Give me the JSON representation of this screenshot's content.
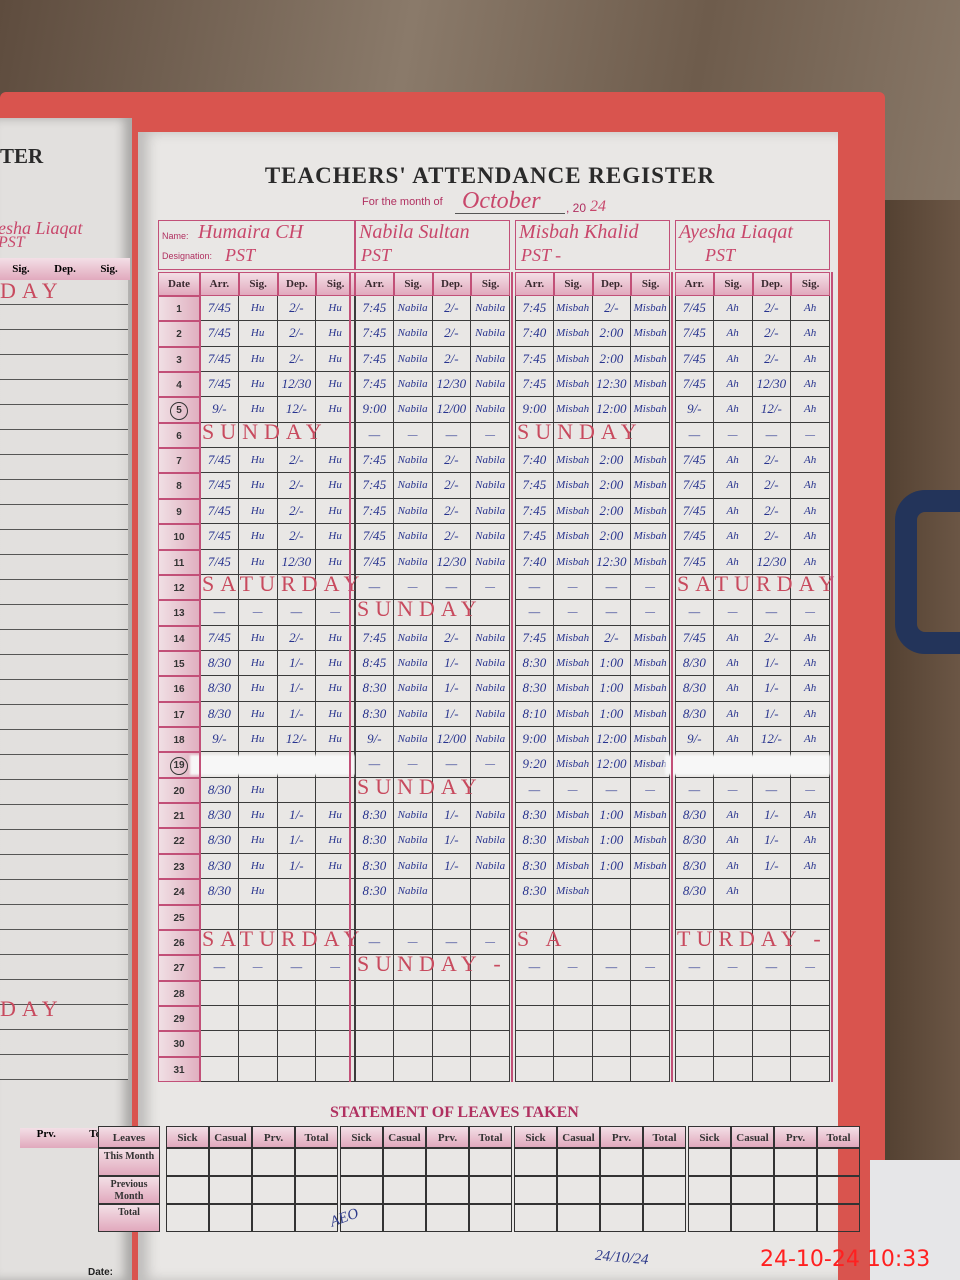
{
  "register": {
    "title": "TEACHERS' ATTENDANCE REGISTER",
    "month_label": "For the month of",
    "month": "October",
    "year_prefix": ", 20",
    "year_suffix": "24",
    "name_label": "Name:",
    "designation_label": "Designation:",
    "date_header": "Date",
    "column_headers": [
      "Arr.",
      "Sig.",
      "Dep.",
      "Sig."
    ],
    "teachers": [
      {
        "name": "Humaira CH",
        "designation": "PST",
        "sig": "Hu"
      },
      {
        "name": "Nabila Sultan",
        "designation": "PST",
        "sig": "Nabila"
      },
      {
        "name": "Misbah Khalid",
        "designation": "PST -",
        "sig": "Misbah"
      },
      {
        "name": "Ayesha Liaqat",
        "designation": "PST",
        "sig": "Ah"
      }
    ],
    "days": [
      {
        "date": "1",
        "entries": [
          [
            "7/45",
            "Hu",
            "2/-",
            "Hu"
          ],
          [
            "7:45",
            "Nabila",
            "2/-",
            "Nabila"
          ],
          [
            "7:45",
            "Misbah",
            "2/-",
            "Misbah"
          ],
          [
            "7/45",
            "Ah",
            "2/-",
            "Ah"
          ]
        ]
      },
      {
        "date": "2",
        "entries": [
          [
            "7/45",
            "Hu",
            "2/-",
            "Hu"
          ],
          [
            "7:45",
            "Nabila",
            "2/-",
            "Nabila"
          ],
          [
            "7:40",
            "Misbah",
            "2:00",
            "Misbah"
          ],
          [
            "7/45",
            "Ah",
            "2/-",
            "Ah"
          ]
        ]
      },
      {
        "date": "3",
        "entries": [
          [
            "7/45",
            "Hu",
            "2/-",
            "Hu"
          ],
          [
            "7:45",
            "Nabila",
            "2/-",
            "Nabila"
          ],
          [
            "7:45",
            "Misbah",
            "2:00",
            "Misbah"
          ],
          [
            "7/45",
            "Ah",
            "2/-",
            "Ah"
          ]
        ]
      },
      {
        "date": "4",
        "entries": [
          [
            "7/45",
            "Hu",
            "12/30",
            "Hu"
          ],
          [
            "7:45",
            "Nabila",
            "12/30",
            "Nabila"
          ],
          [
            "7:45",
            "Misbah",
            "12:30",
            "Misbah"
          ],
          [
            "7/45",
            "Ah",
            "12/30",
            "Ah"
          ]
        ]
      },
      {
        "date": "5",
        "circled": true,
        "entries": [
          [
            "9/-",
            "Hu",
            "12/-",
            "Hu"
          ],
          [
            "9:00",
            "Nabila",
            "12/00",
            "Nabila"
          ],
          [
            "9:00",
            "Misbah",
            "12:00",
            "Misbah"
          ],
          [
            "9/-",
            "Ah",
            "12/-",
            "Ah"
          ]
        ]
      },
      {
        "date": "6",
        "entries": [
          {
            "note": "SUNDAY"
          },
          [
            "-",
            "-",
            "-",
            "-"
          ],
          {
            "note": "SUNDAY"
          },
          [
            "-",
            "-",
            "-",
            "-"
          ]
        ]
      },
      {
        "date": "7",
        "entries": [
          [
            "7/45",
            "Hu",
            "2/-",
            "Hu"
          ],
          [
            "7:45",
            "Nabila",
            "2/-",
            "Nabila"
          ],
          [
            "7:40",
            "Misbah",
            "2:00",
            "Misbah"
          ],
          [
            "7/45",
            "Ah",
            "2/-",
            "Ah"
          ]
        ]
      },
      {
        "date": "8",
        "entries": [
          [
            "7/45",
            "Hu",
            "2/-",
            "Hu"
          ],
          [
            "7:45",
            "Nabila",
            "2/-",
            "Nabila"
          ],
          [
            "7:45",
            "Misbah",
            "2:00",
            "Misbah"
          ],
          [
            "7/45",
            "Ah",
            "2/-",
            "Ah"
          ]
        ]
      },
      {
        "date": "9",
        "entries": [
          [
            "7/45",
            "Hu",
            "2/-",
            "Hu"
          ],
          [
            "7:45",
            "Nabila",
            "2/-",
            "Nabila"
          ],
          [
            "7:45",
            "Misbah",
            "2:00",
            "Misbah"
          ],
          [
            "7/45",
            "Ah",
            "2/-",
            "Ah"
          ]
        ]
      },
      {
        "date": "10",
        "entries": [
          [
            "7/45",
            "Hu",
            "2/-",
            "Hu"
          ],
          [
            "7/45",
            "Nabila",
            "2/-",
            "Nabila"
          ],
          [
            "7:45",
            "Misbah",
            "2:00",
            "Misbah"
          ],
          [
            "7/45",
            "Ah",
            "2/-",
            "Ah"
          ]
        ]
      },
      {
        "date": "11",
        "entries": [
          [
            "7/45",
            "Hu",
            "12/30",
            "Hu"
          ],
          [
            "7/45",
            "Nabila",
            "12/30",
            "Nabila"
          ],
          [
            "7:40",
            "Misbah",
            "12:30",
            "Misbah"
          ],
          [
            "7/45",
            "Ah",
            "12/30",
            "Ah"
          ]
        ]
      },
      {
        "date": "12",
        "entries": [
          {
            "note": "SATURDAY"
          },
          [
            "-",
            "-",
            "-",
            "-"
          ],
          [
            "-",
            "-",
            "-",
            "-"
          ],
          {
            "note": "SATURDAY"
          }
        ]
      },
      {
        "date": "13",
        "entries": [
          [
            "-",
            "-",
            "-",
            "-"
          ],
          {
            "note": "SUNDAY"
          },
          [
            "-",
            "-",
            "-",
            "-"
          ],
          [
            "-",
            "-",
            "-",
            "-"
          ]
        ]
      },
      {
        "date": "14",
        "entries": [
          [
            "7/45",
            "Hu",
            "2/-",
            "Hu"
          ],
          [
            "7:45",
            "Nabila",
            "2/-",
            "Nabila"
          ],
          [
            "7:45",
            "Misbah",
            "2/-",
            "Misbah"
          ],
          [
            "7/45",
            "Ah",
            "2/-",
            "Ah"
          ]
        ]
      },
      {
        "date": "15",
        "entries": [
          [
            "8/30",
            "Hu",
            "1/-",
            "Hu"
          ],
          [
            "8:45",
            "Nabila",
            "1/-",
            "Nabila"
          ],
          [
            "8:30",
            "Misbah",
            "1:00",
            "Misbah"
          ],
          [
            "8/30",
            "Ah",
            "1/-",
            "Ah"
          ]
        ]
      },
      {
        "date": "16",
        "entries": [
          [
            "8/30",
            "Hu",
            "1/-",
            "Hu"
          ],
          [
            "8:30",
            "Nabila",
            "1/-",
            "Nabila"
          ],
          [
            "8:30",
            "Misbah",
            "1:00",
            "Misbah"
          ],
          [
            "8/30",
            "Ah",
            "1/-",
            "Ah"
          ]
        ]
      },
      {
        "date": "17",
        "entries": [
          [
            "8/30",
            "Hu",
            "1/-",
            "Hu"
          ],
          [
            "8:30",
            "Nabila",
            "1/-",
            "Nabila"
          ],
          [
            "8:10",
            "Misbah",
            "1:00",
            "Misbah"
          ],
          [
            "8/30",
            "Ah",
            "1/-",
            "Ah"
          ]
        ]
      },
      {
        "date": "18",
        "entries": [
          [
            "9/-",
            "Hu",
            "12/-",
            "Hu"
          ],
          [
            "9/-",
            "Nabila",
            "12/00",
            "Nabila"
          ],
          [
            "9:00",
            "Misbah",
            "12:00",
            "Misbah"
          ],
          [
            "9/-",
            "Ah",
            "12/-",
            "Ah"
          ]
        ]
      },
      {
        "date": "19",
        "circled": true,
        "entries": [
          {
            "whiteout": true
          },
          [
            "-",
            "-",
            "-",
            "-"
          ],
          [
            "9:20",
            "Misbah",
            "12:00",
            "Misbah"
          ],
          {
            "whiteout": true
          }
        ]
      },
      {
        "date": "20",
        "entries": [
          [
            "8/30",
            "Hu",
            "",
            ""
          ],
          {
            "note": "SUNDAY"
          },
          [
            "-",
            "-",
            "-",
            "-"
          ],
          [
            "-",
            "-",
            "-",
            "-"
          ]
        ]
      },
      {
        "date": "21",
        "entries": [
          [
            "8/30",
            "Hu",
            "1/-",
            "Hu"
          ],
          [
            "8:30",
            "Nabila",
            "1/-",
            "Nabila"
          ],
          [
            "8:30",
            "Misbah",
            "1:00",
            "Misbah"
          ],
          [
            "8/30",
            "Ah",
            "1/-",
            "Ah"
          ]
        ]
      },
      {
        "date": "22",
        "entries": [
          [
            "8/30",
            "Hu",
            "1/-",
            "Hu"
          ],
          [
            "8:30",
            "Nabila",
            "1/-",
            "Nabila"
          ],
          [
            "8:30",
            "Misbah",
            "1:00",
            "Misbah"
          ],
          [
            "8/30",
            "Ah",
            "1/-",
            "Ah"
          ]
        ]
      },
      {
        "date": "23",
        "entries": [
          [
            "8/30",
            "Hu",
            "1/-",
            "Hu"
          ],
          [
            "8:30",
            "Nabila",
            "1/-",
            "Nabila"
          ],
          [
            "8:30",
            "Misbah",
            "1:00",
            "Misbah"
          ],
          [
            "8/30",
            "Ah",
            "1/-",
            "Ah"
          ]
        ]
      },
      {
        "date": "24",
        "entries": [
          [
            "8/30",
            "Hu",
            "",
            ""
          ],
          [
            "8:30",
            "Nabila",
            "",
            ""
          ],
          [
            "8:30",
            "Misbah",
            "",
            ""
          ],
          [
            "8/30",
            "Ah",
            "",
            ""
          ]
        ]
      },
      {
        "date": "25",
        "entries": [
          [
            "",
            "",
            "",
            ""
          ],
          [
            "",
            "",
            "",
            ""
          ],
          [
            "",
            "",
            "",
            ""
          ],
          [
            "",
            "",
            "",
            ""
          ]
        ]
      },
      {
        "date": "26",
        "entries": [
          {
            "note": "SATURDAY"
          },
          [
            "-",
            "-",
            "-",
            "-"
          ],
          {
            "note": "S A"
          },
          {
            "note": "TURDAY -"
          }
        ]
      },
      {
        "date": "27",
        "entries": [
          [
            "-",
            "-",
            "-",
            "-"
          ],
          {
            "note": "SUNDAY -"
          },
          [
            "-",
            "-",
            "-",
            "-"
          ],
          [
            "-",
            "-",
            "-",
            "-"
          ]
        ]
      },
      {
        "date": "28",
        "entries": [
          [
            "",
            "",
            "",
            ""
          ],
          [
            "",
            "",
            "",
            ""
          ],
          [
            "",
            "",
            "",
            ""
          ],
          [
            "",
            "",
            "",
            ""
          ]
        ]
      },
      {
        "date": "29",
        "entries": [
          [
            "",
            "",
            "",
            ""
          ],
          [
            "",
            "",
            "",
            ""
          ],
          [
            "",
            "",
            "",
            ""
          ],
          [
            "",
            "",
            "",
            ""
          ]
        ]
      },
      {
        "date": "30",
        "entries": [
          [
            "",
            "",
            "",
            ""
          ],
          [
            "",
            "",
            "",
            ""
          ],
          [
            "",
            "",
            "",
            ""
          ],
          [
            "",
            "",
            "",
            ""
          ]
        ]
      },
      {
        "date": "31",
        "entries": [
          [
            "",
            "",
            "",
            ""
          ],
          [
            "",
            "",
            "",
            ""
          ],
          [
            "",
            "",
            "",
            ""
          ],
          [
            "",
            "",
            "",
            ""
          ]
        ]
      }
    ]
  },
  "leaves": {
    "title": "STATEMENT OF LEAVES TAKEN",
    "row_header": "Leaves",
    "rows": [
      "This Month",
      "Previous Month",
      "Total"
    ],
    "columns": [
      "Sick",
      "Casual",
      "Prv.",
      "Total"
    ]
  },
  "left_page": {
    "title_fragment": "TER",
    "name_fragment": "esha Liaqat",
    "designation_fragment": "PST",
    "column_headers": [
      "Sig.",
      "Dep.",
      "Sig."
    ],
    "leaves_headers": [
      "Prv.",
      "Total"
    ],
    "note_top": "DAY",
    "note_bottom": "DAY"
  },
  "footer": {
    "date_label": "Date:",
    "signature_notes": [
      "AEO",
      "24/10/24"
    ]
  },
  "timestamp": "24-10-24  10:33",
  "colors": {
    "ruling": "#c25078",
    "ink_blue": "#27338e",
    "ink_red": "#c8476b",
    "cover": "#d9544e",
    "timestamp": "#ff2020"
  }
}
